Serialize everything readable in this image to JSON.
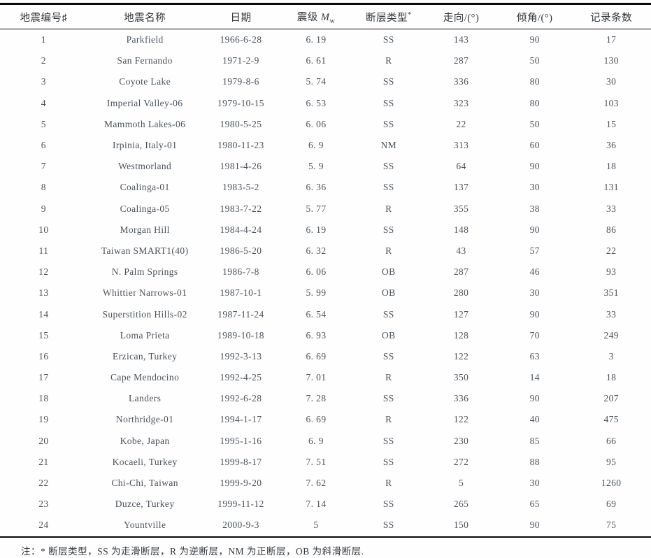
{
  "table": {
    "column_ids": [
      "no",
      "name",
      "date",
      "magnitude",
      "fault_type",
      "strike",
      "dip",
      "record_count"
    ],
    "columns": [
      {
        "label": "地震编号♯"
      },
      {
        "label": "地震名称"
      },
      {
        "label": "日期"
      },
      {
        "label": "震级 ",
        "italic": "M",
        "sub": "w"
      },
      {
        "label": "断层类型",
        "sup": "*"
      },
      {
        "label": "走向/(°)"
      },
      {
        "label": "倾角/(°)"
      },
      {
        "label": "记录条数"
      }
    ],
    "rows": [
      [
        "1",
        "Parkfield",
        "1966-6-28",
        "6. 19",
        "SS",
        "143",
        "90",
        "17"
      ],
      [
        "2",
        "San Fernando",
        "1971-2-9",
        "6. 61",
        "R",
        "287",
        "50",
        "130"
      ],
      [
        "3",
        "Coyote Lake",
        "1979-8-6",
        "5. 74",
        "SS",
        "336",
        "80",
        "30"
      ],
      [
        "4",
        "Imperial Valley-06",
        "1979-10-15",
        "6. 53",
        "SS",
        "323",
        "80",
        "103"
      ],
      [
        "5",
        "Mammoth Lakes-06",
        "1980-5-25",
        "6. 06",
        "SS",
        "22",
        "50",
        "15"
      ],
      [
        "6",
        "Irpinia, Italy-01",
        "1980-11-23",
        "6. 9",
        "NM",
        "313",
        "60",
        "36"
      ],
      [
        "7",
        "Westmorland",
        "1981-4-26",
        "5. 9",
        "SS",
        "64",
        "90",
        "18"
      ],
      [
        "8",
        "Coalinga-01",
        "1983-5-2",
        "6. 36",
        "SS",
        "137",
        "30",
        "131"
      ],
      [
        "9",
        "Coalinga-05",
        "1983-7-22",
        "5. 77",
        "R",
        "355",
        "38",
        "33"
      ],
      [
        "10",
        "Morgan Hill",
        "1984-4-24",
        "6. 19",
        "SS",
        "148",
        "90",
        "86"
      ],
      [
        "11",
        "Taiwan SMART1(40)",
        "1986-5-20",
        "6. 32",
        "R",
        "43",
        "57",
        "22"
      ],
      [
        "12",
        "N. Palm Springs",
        "1986-7-8",
        "6. 06",
        "OB",
        "287",
        "46",
        "93"
      ],
      [
        "13",
        "Whittier Narrows-01",
        "1987-10-1",
        "5. 99",
        "OB",
        "280",
        "30",
        "351"
      ],
      [
        "14",
        "Superstition Hills-02",
        "1987-11-24",
        "6. 54",
        "SS",
        "127",
        "90",
        "33"
      ],
      [
        "15",
        "Loma Prieta",
        "1989-10-18",
        "6. 93",
        "OB",
        "128",
        "70",
        "249"
      ],
      [
        "16",
        "Erzican, Turkey",
        "1992-3-13",
        "6. 69",
        "SS",
        "122",
        "63",
        "3"
      ],
      [
        "17",
        "Cape Mendocino",
        "1992-4-25",
        "7. 01",
        "R",
        "350",
        "14",
        "18"
      ],
      [
        "18",
        "Landers",
        "1992-6-28",
        "7. 28",
        "SS",
        "336",
        "90",
        "207"
      ],
      [
        "19",
        "Northridge-01",
        "1994-1-17",
        "6. 69",
        "R",
        "122",
        "40",
        "475"
      ],
      [
        "20",
        "Kobe, Japan",
        "1995-1-16",
        "6. 9",
        "SS",
        "230",
        "85",
        "66"
      ],
      [
        "21",
        "Kocaeli, Turkey",
        "1999-8-17",
        "7. 51",
        "SS",
        "272",
        "88",
        "95"
      ],
      [
        "22",
        "Chi-Chi, Taiwan",
        "1999-9-20",
        "7. 62",
        "R",
        "5",
        "30",
        "1260"
      ],
      [
        "23",
        "Duzce, Turkey",
        "1999-11-12",
        "7. 14",
        "SS",
        "265",
        "65",
        "69"
      ],
      [
        "24",
        "Yountville",
        "2000-9-3",
        "5",
        "SS",
        "150",
        "90",
        "75"
      ]
    ]
  },
  "footnote": "注：* 断层类型，SS 为走滑断层，R 为逆断层，NM 为正断层，OB 为斜滑断层."
}
